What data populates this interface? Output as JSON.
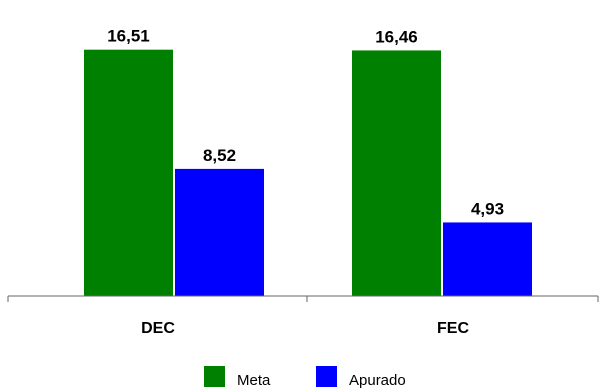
{
  "chart_data": {
    "type": "bar",
    "categories": [
      "DEC",
      "FEC"
    ],
    "series": [
      {
        "name": "Meta",
        "values": [
          16.51,
          16.46
        ],
        "labels": [
          "16,51",
          "16,46"
        ],
        "color": "#008000"
      },
      {
        "name": "Apurado",
        "values": [
          8.52,
          4.93
        ],
        "labels": [
          "8,52",
          "4,93"
        ],
        "color": "#0000ff"
      }
    ],
    "ylim": [
      0,
      18.5
    ],
    "grid": false,
    "legend": "bottom"
  }
}
